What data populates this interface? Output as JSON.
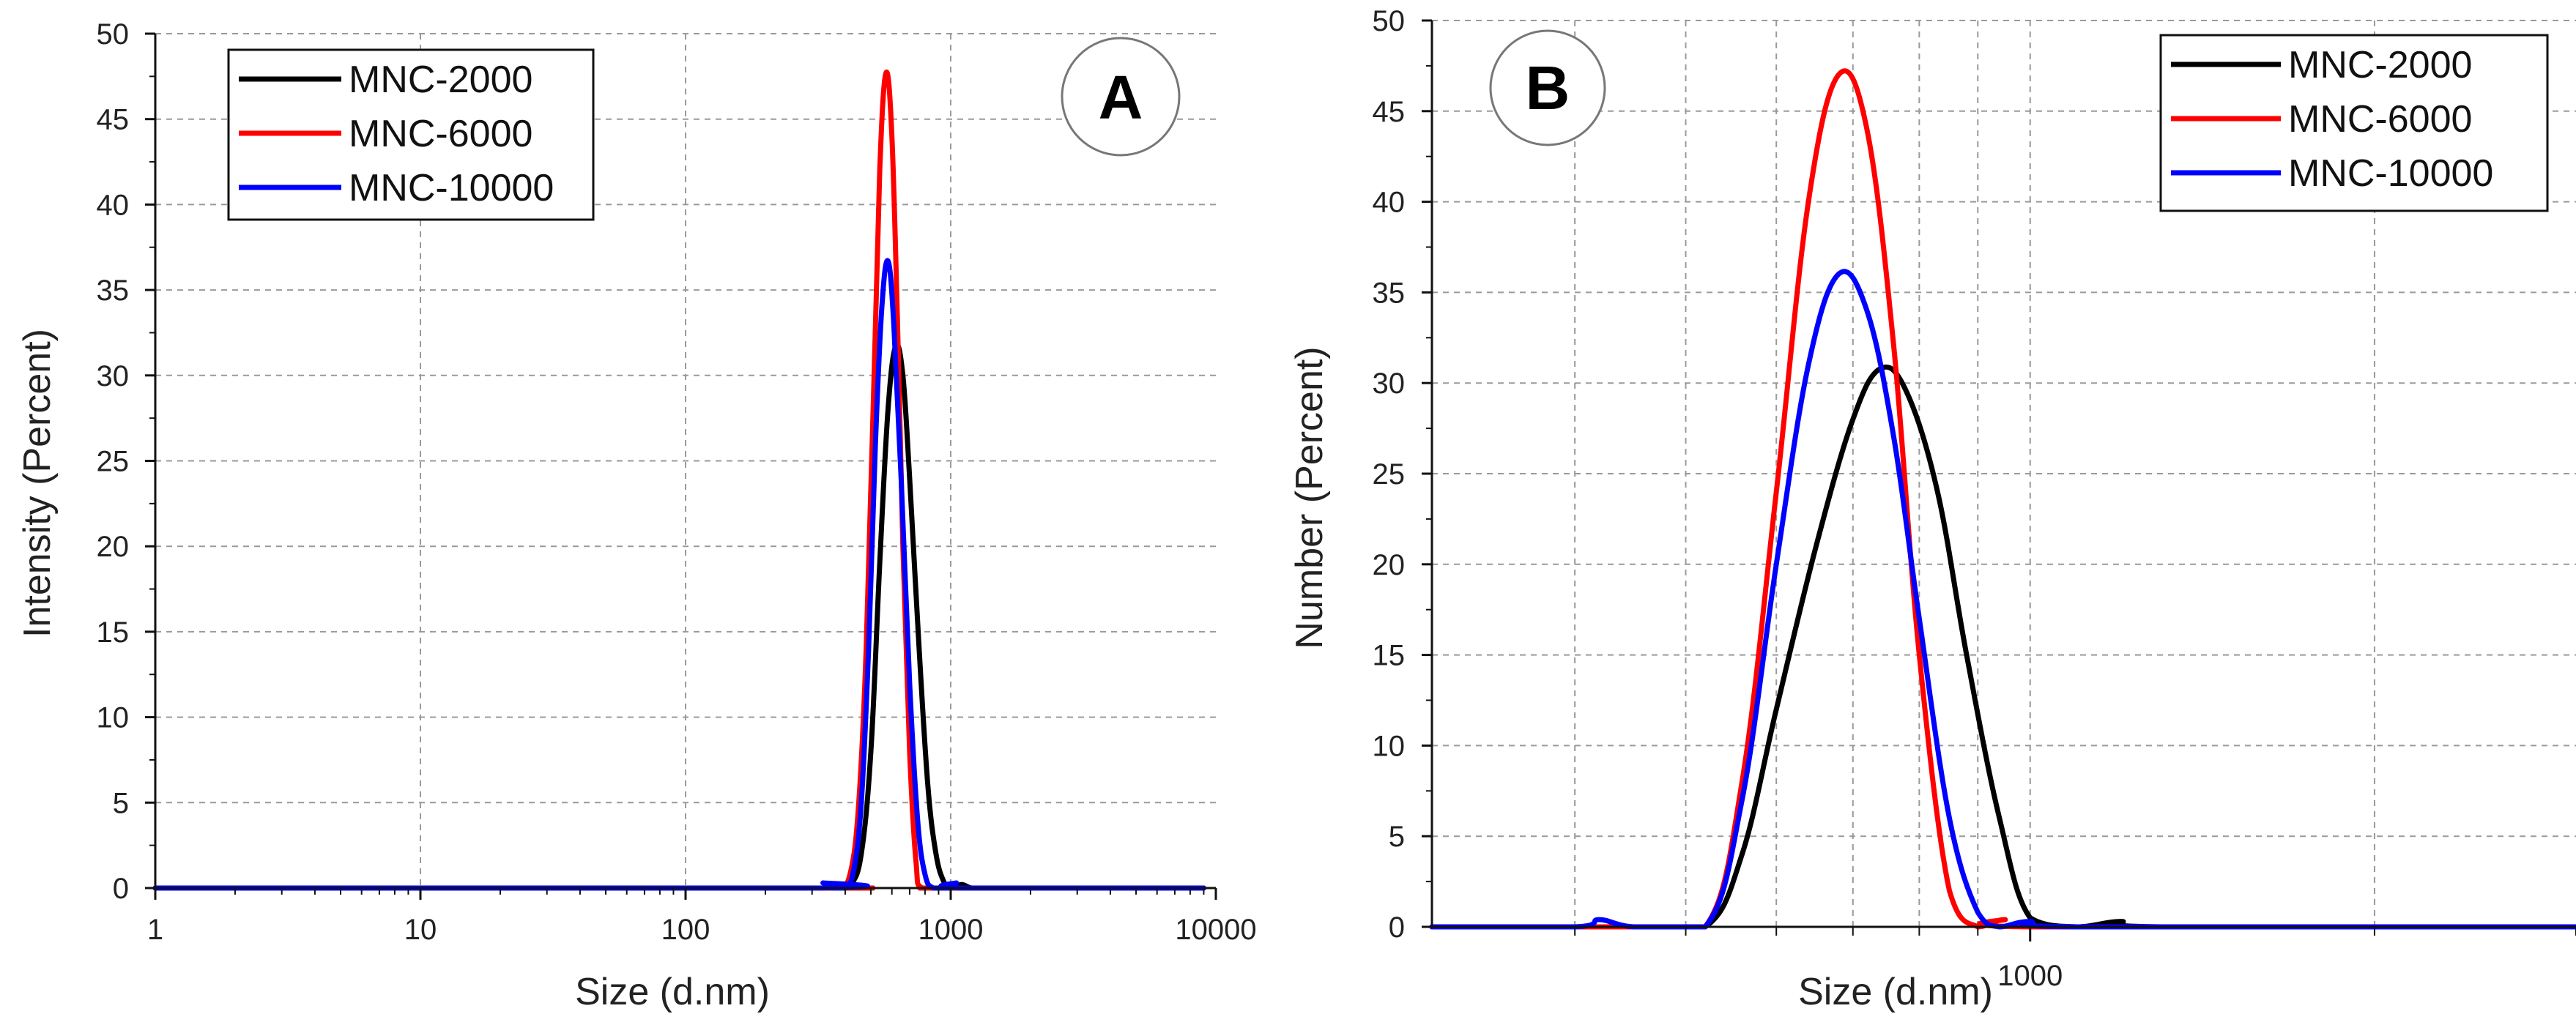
{
  "chart_data": [
    {
      "type": "line",
      "panel": "A",
      "xscale": "log",
      "xlim": [
        1,
        10000
      ],
      "ylim": [
        0,
        50
      ],
      "xticks": [
        1,
        10,
        100,
        1000,
        10000
      ],
      "xtick_labels": [
        "1",
        "10",
        "100",
        "1000",
        "10000"
      ],
      "yticks": [
        0,
        5,
        10,
        15,
        20,
        25,
        30,
        35,
        40,
        45,
        50
      ],
      "xlabel": "Size (d.nm)",
      "ylabel": "Intensity (Percent)",
      "legend": "top-left",
      "grid": true,
      "series": [
        {
          "name": "MNC-2000",
          "color": "#000000",
          "x": [
            1,
            300,
            380,
            420,
            460,
            500,
            540,
            580,
            620,
            660,
            700,
            760,
            820,
            880,
            940,
            1000,
            1100,
            1200,
            1400,
            9000
          ],
          "y": [
            0,
            0,
            0,
            0.2,
            2,
            8,
            19,
            28,
            31.7,
            30,
            24,
            14,
            6,
            2,
            0.4,
            0,
            0.2,
            0,
            0,
            0
          ]
        },
        {
          "name": "MNC-6000",
          "color": "#ff0000",
          "x": [
            1,
            300,
            380,
            420,
            450,
            480,
            510,
            540,
            570,
            600,
            630,
            660,
            700,
            740,
            780,
            1000,
            9000
          ],
          "y": [
            0,
            0,
            0,
            1,
            5,
            14,
            28,
            42,
            47.7,
            44,
            33,
            20,
            8,
            1.5,
            0,
            0,
            0
          ]
        },
        {
          "name": "MNC-10000",
          "color": "#0000ff",
          "x": [
            1,
            300,
            330,
            360,
            400,
            430,
            460,
            490,
            520,
            550,
            580,
            610,
            650,
            700,
            750,
            800,
            860,
            1000,
            1050,
            1100,
            9000
          ],
          "y": [
            0,
            0,
            0.3,
            0,
            0,
            1,
            5,
            14,
            26,
            34,
            36.7,
            33,
            24,
            12,
            4,
            0.8,
            0,
            0,
            0.3,
            0,
            0
          ]
        }
      ]
    },
    {
      "type": "line",
      "panel": "B",
      "xscale": "log",
      "xlim": [
        300,
        3000
      ],
      "ylim": [
        0,
        50
      ],
      "xticks": [
        1000
      ],
      "xtick_labels": [
        "1000"
      ],
      "yticks": [
        0,
        5,
        10,
        15,
        20,
        25,
        30,
        35,
        40,
        45,
        50
      ],
      "xlabel": "Size (d.nm)",
      "ylabel": "Number (Percent)",
      "legend": "top-right",
      "grid": true,
      "series": [
        {
          "name": "MNC-2000",
          "color": "#000000",
          "x": [
            300,
            400,
            450,
            520,
            560,
            600,
            650,
            700,
            740,
            780,
            830,
            880,
            940,
            1000,
            1100,
            1200,
            1300,
            3000
          ],
          "y": [
            0,
            0,
            0,
            0,
            4,
            12,
            21,
            28,
            30.8,
            29.5,
            24,
            15,
            6,
            0.5,
            0,
            0.3,
            0,
            0
          ]
        },
        {
          "name": "MNC-6000",
          "color": "#ff0000",
          "x": [
            300,
            400,
            450,
            520,
            560,
            600,
            640,
            680,
            720,
            760,
            800,
            850,
            900,
            950,
            1000,
            3000
          ],
          "y": [
            0,
            0,
            0,
            0,
            8,
            24,
            40,
            47,
            44,
            32,
            15,
            2,
            0,
            0.4,
            0,
            0
          ]
        },
        {
          "name": "MNC-10000",
          "color": "#0000ff",
          "x": [
            300,
            400,
            420,
            450,
            520,
            560,
            600,
            640,
            680,
            720,
            760,
            800,
            850,
            900,
            940,
            1000,
            1100,
            3000
          ],
          "y": [
            0,
            0,
            0.4,
            0,
            0,
            7,
            20,
            31,
            36,
            34,
            27,
            17,
            6,
            0.8,
            0,
            0.3,
            0,
            0
          ]
        }
      ]
    }
  ],
  "badges": {
    "a": "A",
    "b": "B"
  }
}
